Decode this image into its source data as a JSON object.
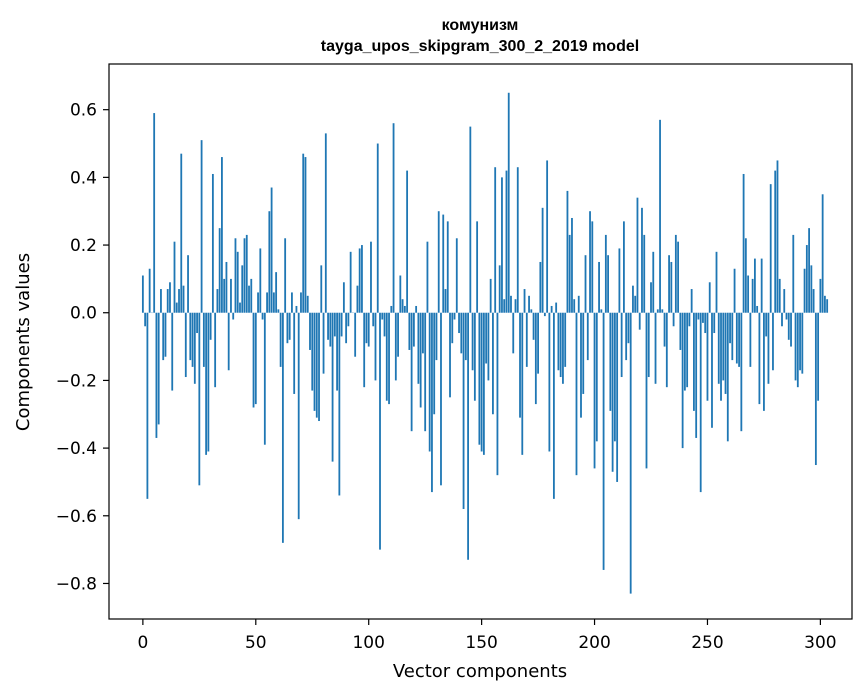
{
  "chart_data": {
    "type": "bar",
    "title": "комунизм",
    "subtitle": "tayga_upos_skipgram_300_2_2019 model",
    "xlabel": "Vector components",
    "ylabel": "Components values",
    "xlim": [
      -15,
      314
    ],
    "ylim": [
      -0.905,
      0.735
    ],
    "grid": false,
    "bar_color": "#1f77b4",
    "x_ticks": [
      0,
      50,
      100,
      150,
      200,
      250,
      300
    ],
    "x_tick_labels": [
      "0",
      "50",
      "100",
      "150",
      "200",
      "250",
      "300"
    ],
    "y_ticks": [
      0.6,
      0.4,
      0.2,
      0.0,
      -0.2,
      -0.4,
      -0.6,
      -0.8
    ],
    "y_tick_labels": [
      "0.6",
      "0.4",
      "0.2",
      "0.0",
      "−0.2",
      "−0.4",
      "−0.6",
      "−0.8"
    ],
    "values": [
      0.11,
      -0.04,
      -0.55,
      0.13,
      0.0,
      0.59,
      -0.37,
      -0.33,
      0.07,
      -0.14,
      -0.13,
      0.07,
      0.09,
      -0.23,
      0.21,
      0.03,
      0.07,
      0.47,
      0.08,
      -0.19,
      0.17,
      -0.14,
      -0.16,
      -0.21,
      -0.06,
      -0.51,
      0.51,
      -0.16,
      -0.42,
      -0.41,
      -0.08,
      0.41,
      -0.22,
      0.07,
      0.25,
      0.46,
      0.1,
      0.15,
      -0.17,
      0.1,
      -0.02,
      0.22,
      0.18,
      0.03,
      0.14,
      0.22,
      0.23,
      0.08,
      0.1,
      -0.28,
      -0.27,
      0.06,
      0.19,
      -0.02,
      -0.39,
      0.06,
      0.3,
      0.37,
      0.06,
      0.12,
      0.01,
      -0.16,
      -0.68,
      0.22,
      -0.09,
      -0.08,
      0.06,
      -0.24,
      0.02,
      -0.61,
      0.06,
      0.47,
      0.46,
      0.05,
      -0.11,
      -0.23,
      -0.29,
      -0.31,
      -0.32,
      0.14,
      -0.18,
      0.53,
      -0.08,
      -0.1,
      -0.44,
      -0.07,
      -0.23,
      -0.54,
      -0.07,
      0.09,
      -0.09,
      -0.04,
      0.18,
      0.0,
      -0.13,
      0.08,
      0.19,
      0.2,
      -0.22,
      -0.09,
      -0.1,
      0.21,
      -0.04,
      -0.2,
      0.5,
      -0.7,
      -0.02,
      -0.07,
      -0.26,
      -0.27,
      0.02,
      0.56,
      -0.2,
      -0.13,
      0.11,
      0.04,
      0.02,
      0.42,
      -0.11,
      -0.35,
      -0.1,
      0.02,
      -0.21,
      -0.28,
      -0.12,
      -0.35,
      0.21,
      -0.41,
      -0.53,
      -0.3,
      -0.14,
      0.3,
      -0.51,
      0.29,
      0.07,
      0.27,
      -0.25,
      -0.09,
      -0.02,
      0.22,
      -0.06,
      -0.12,
      -0.58,
      -0.14,
      -0.73,
      0.55,
      -0.17,
      -0.26,
      0.27,
      -0.39,
      -0.41,
      -0.42,
      -0.15,
      -0.2,
      0.1,
      -0.3,
      0.43,
      -0.48,
      0.14,
      0.4,
      0.04,
      0.42,
      0.65,
      0.05,
      -0.12,
      0.04,
      0.43,
      -0.31,
      -0.42,
      0.07,
      -0.16,
      0.05,
      0.01,
      -0.08,
      -0.27,
      -0.18,
      0.15,
      0.31,
      -0.01,
      0.45,
      -0.41,
      0.02,
      -0.55,
      0.03,
      -0.17,
      -0.19,
      -0.21,
      -0.16,
      0.36,
      0.23,
      0.28,
      0.04,
      -0.48,
      0.05,
      -0.31,
      -0.24,
      0.17,
      -0.14,
      0.3,
      0.27,
      -0.46,
      -0.38,
      0.15,
      0.01,
      -0.76,
      0.23,
      0.17,
      -0.29,
      -0.47,
      -0.38,
      -0.5,
      0.19,
      -0.19,
      0.27,
      -0.14,
      -0.09,
      -0.83,
      0.08,
      0.05,
      0.34,
      -0.05,
      0.31,
      0.23,
      -0.46,
      -0.19,
      0.09,
      0.18,
      -0.21,
      0.01,
      0.57,
      0.01,
      -0.1,
      -0.22,
      0.17,
      0.15,
      -0.04,
      0.23,
      0.21,
      -0.11,
      -0.4,
      -0.23,
      -0.22,
      -0.04,
      0.07,
      -0.29,
      -0.37,
      -0.02,
      -0.53,
      -0.03,
      -0.06,
      -0.26,
      0.09,
      -0.34,
      -0.06,
      0.18,
      -0.21,
      -0.26,
      -0.2,
      -0.24,
      -0.38,
      -0.09,
      -0.14,
      0.13,
      -0.15,
      -0.16,
      -0.35,
      0.41,
      0.22,
      0.11,
      -0.16,
      0.1,
      0.16,
      0.02,
      -0.27,
      0.16,
      -0.29,
      -0.07,
      -0.21,
      0.38,
      -0.17,
      0.42,
      0.45,
      0.1,
      -0.04,
      0.07,
      -0.02,
      -0.08,
      -0.1,
      0.23,
      -0.2,
      -0.22,
      -0.17,
      -0.18,
      0.13,
      0.2,
      0.25,
      0.14,
      0.07,
      -0.45,
      -0.26,
      0.1,
      0.35,
      0.05,
      0.04
    ]
  }
}
